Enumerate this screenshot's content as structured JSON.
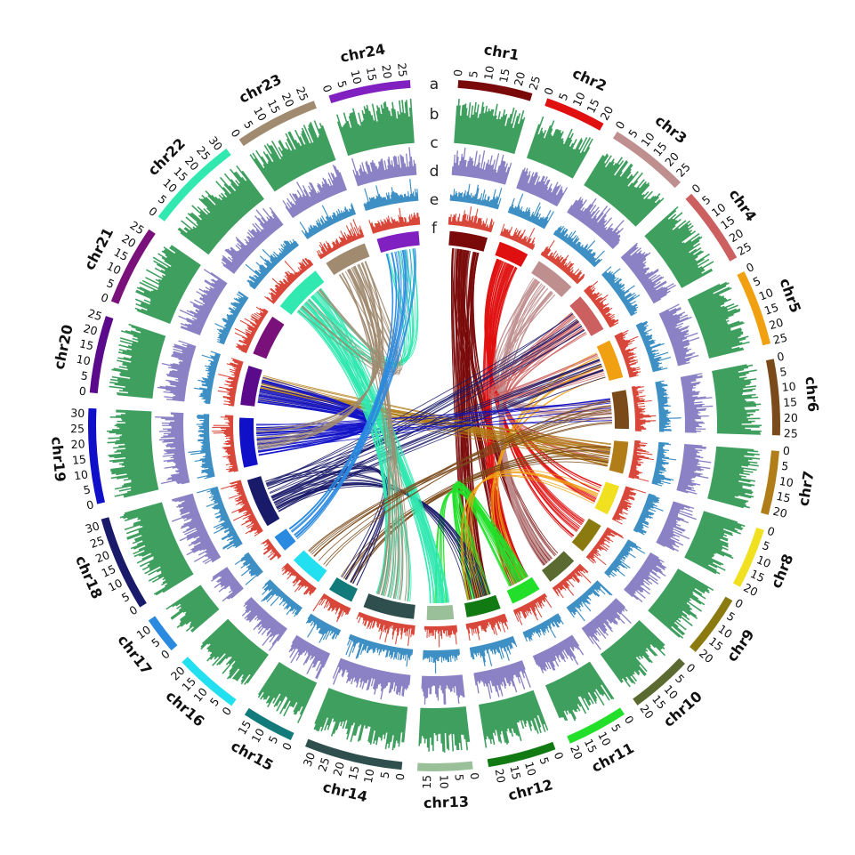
{
  "figure": {
    "track_letters": [
      "a",
      "b",
      "c",
      "d",
      "e",
      "f"
    ]
  },
  "colors": {
    "track_b": "#3f9f5f",
    "track_c": "#8a82c4",
    "track_d": "#3e8fc4",
    "track_e": "#d9473a"
  },
  "chromosomes": [
    {
      "name": "chr1",
      "length": 25,
      "color": "#7a0a0a",
      "ticks": [
        0,
        5,
        10,
        15,
        20,
        25
      ]
    },
    {
      "name": "chr2",
      "length": 20.5,
      "color": "#e01010",
      "ticks": [
        0,
        5,
        10,
        15,
        20
      ]
    },
    {
      "name": "chr3",
      "length": 27,
      "color": "#bf8f8f",
      "ticks": [
        0,
        5,
        10,
        15,
        20,
        25
      ]
    },
    {
      "name": "chr4",
      "length": 26,
      "color": "#cc6060",
      "ticks": [
        0,
        5,
        10,
        15,
        20,
        25
      ]
    },
    {
      "name": "chr5",
      "length": 25.5,
      "color": "#f0a010",
      "ticks": [
        0,
        5,
        10,
        15,
        20,
        25
      ]
    },
    {
      "name": "chr6",
      "length": 25.5,
      "color": "#7a4a1a",
      "ticks": [
        0,
        5,
        10,
        15,
        20,
        25
      ]
    },
    {
      "name": "chr7",
      "length": 21.5,
      "color": "#b07d18",
      "ticks": [
        0,
        5,
        10,
        15,
        20
      ]
    },
    {
      "name": "chr8",
      "length": 20.5,
      "color": "#f0e020",
      "ticks": [
        0,
        5,
        10,
        15,
        20
      ]
    },
    {
      "name": "chr9",
      "length": 21,
      "color": "#8a7a10",
      "ticks": [
        0,
        5,
        10,
        15,
        20
      ]
    },
    {
      "name": "chr10",
      "length": 21,
      "color": "#5a6a30",
      "ticks": [
        0,
        5,
        10,
        15,
        20
      ]
    },
    {
      "name": "chr11",
      "length": 20.5,
      "color": "#22e02a",
      "ticks": [
        0,
        5,
        10,
        15,
        20
      ]
    },
    {
      "name": "chr12",
      "length": 23,
      "color": "#127a12",
      "ticks": [
        0,
        5,
        10,
        15,
        20
      ]
    },
    {
      "name": "chr13",
      "length": 18.5,
      "color": "#9ac09a",
      "ticks": [
        0,
        5,
        10,
        15
      ]
    },
    {
      "name": "chr14",
      "length": 33,
      "color": "#2f4f4f",
      "ticks": [
        0,
        5,
        10,
        15,
        20,
        25,
        30
      ]
    },
    {
      "name": "chr15",
      "length": 17.5,
      "color": "#127a7a",
      "ticks": [
        0,
        5,
        10,
        15
      ]
    },
    {
      "name": "chr16",
      "length": 22,
      "color": "#22e0f0",
      "ticks": [
        0,
        5,
        10,
        15,
        20
      ]
    },
    {
      "name": "chr17",
      "length": 12.5,
      "color": "#2a8ae0",
      "ticks": [
        0,
        5,
        10
      ]
    },
    {
      "name": "chr18",
      "length": 32,
      "color": "#1a1a6a",
      "ticks": [
        0,
        5,
        10,
        15,
        20,
        25,
        30
      ]
    },
    {
      "name": "chr19",
      "length": 32,
      "color": "#1010c8",
      "ticks": [
        0,
        5,
        10,
        15,
        20,
        25,
        30
      ]
    },
    {
      "name": "chr20",
      "length": 26,
      "color": "#5a0a8a",
      "ticks": [
        0,
        5,
        10,
        15,
        20,
        25
      ]
    },
    {
      "name": "chr21",
      "length": 27,
      "color": "#7a107a",
      "ticks": [
        0,
        5,
        10,
        15,
        20,
        25
      ]
    },
    {
      "name": "chr22",
      "length": 32,
      "color": "#30e8b0",
      "ticks": [
        0,
        5,
        10,
        15,
        20,
        25,
        30
      ]
    },
    {
      "name": "chr23",
      "length": 28,
      "color": "#a08a70",
      "ticks": [
        0,
        5,
        10,
        15,
        20,
        25
      ]
    },
    {
      "name": "chr24",
      "length": 27.5,
      "color": "#8020c0",
      "ticks": [
        0,
        5,
        10,
        15,
        20,
        25
      ]
    }
  ],
  "links": [
    {
      "from": "chr1",
      "to": "chr12",
      "color": "#7a0a0a",
      "count": 40
    },
    {
      "from": "chr1",
      "to": "chr11",
      "color": "#7a0a0a",
      "count": 22
    },
    {
      "from": "chr1",
      "to": "chr10",
      "color": "#7a0a0a",
      "count": 18
    },
    {
      "from": "chr2",
      "to": "chr11",
      "color": "#e01010",
      "count": 24
    },
    {
      "from": "chr2",
      "to": "chr9",
      "color": "#e01010",
      "count": 20
    },
    {
      "from": "chr2",
      "to": "chr8",
      "color": "#e01010",
      "count": 14
    },
    {
      "from": "chr3",
      "to": "chr6",
      "color": "#bf8f8f",
      "count": 14
    },
    {
      "from": "chr3",
      "to": "chr10",
      "color": "#bf8f8f",
      "count": 20
    },
    {
      "from": "chr4",
      "to": "chr5",
      "color": "#cc6060",
      "count": 14
    },
    {
      "from": "chr4",
      "to": "chr7",
      "color": "#cc6060",
      "count": 12
    },
    {
      "from": "chr5",
      "to": "chr11",
      "color": "#f0a010",
      "count": 8
    },
    {
      "from": "chr7",
      "to": "chr20",
      "color": "#b07d18",
      "count": 26
    },
    {
      "from": "chr7",
      "to": "chr15",
      "color": "#7a4a1a",
      "count": 10
    },
    {
      "from": "chr11",
      "to": "chr12",
      "color": "#22e02a",
      "count": 24
    },
    {
      "from": "chr11",
      "to": "chr13",
      "color": "#22e02a",
      "count": 10
    },
    {
      "from": "chr18",
      "to": "chr5",
      "color": "#1a1a6a",
      "count": 12
    },
    {
      "from": "chr18",
      "to": "chr4",
      "color": "#1a1a6a",
      "count": 10
    },
    {
      "from": "chr18",
      "to": "chr12",
      "color": "#1a1a6a",
      "count": 14
    },
    {
      "from": "chr18",
      "to": "chr15",
      "color": "#1a1a6a",
      "count": 10
    },
    {
      "from": "chr19",
      "to": "chr20",
      "color": "#1010c8",
      "count": 34
    },
    {
      "from": "chr19",
      "to": "chr6",
      "color": "#1010c8",
      "count": 8
    },
    {
      "from": "chr22",
      "to": "chr13",
      "color": "#30e8b0",
      "count": 32
    },
    {
      "from": "chr22",
      "to": "chr14",
      "color": "#30e8b0",
      "count": 22
    },
    {
      "from": "chr22",
      "to": "chr24",
      "color": "#30e8b0",
      "count": 16
    },
    {
      "from": "chr23",
      "to": "chr14",
      "color": "#a08a70",
      "count": 16
    },
    {
      "from": "chr23",
      "to": "chr19",
      "color": "#a08a70",
      "count": 16
    },
    {
      "from": "chr23",
      "to": "chr22",
      "color": "#a08a70",
      "count": 10
    },
    {
      "from": "chr24",
      "to": "chr17",
      "color": "#2a8ae0",
      "count": 22
    },
    {
      "from": "chr6",
      "to": "chr16",
      "color": "#7a4a1a",
      "count": 10
    },
    {
      "from": "chr8",
      "to": "chr12",
      "color": "#f0a010",
      "count": 8
    }
  ]
}
